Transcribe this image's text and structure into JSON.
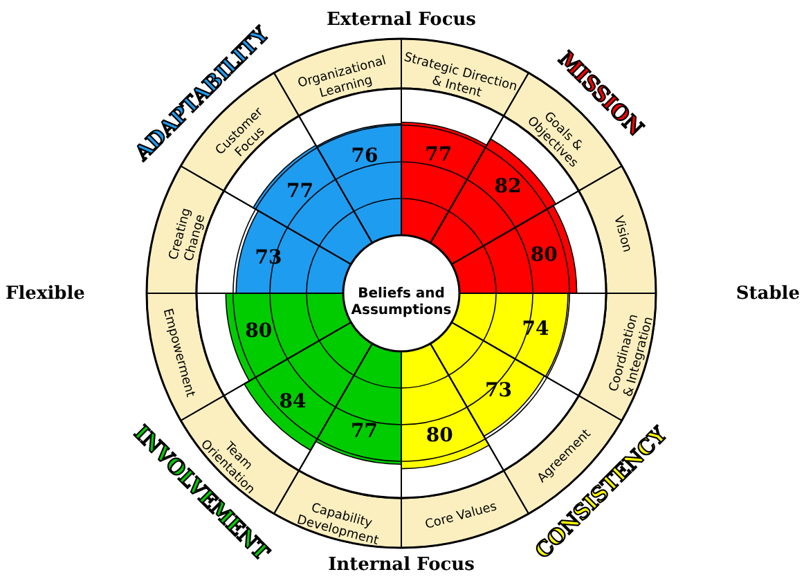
{
  "chart_data": {
    "type": "other",
    "categories": [
      "Strategic Direction\n& Intent",
      "Goals &\nObjectives",
      "Vision",
      "Coordination\n& Integration",
      "Agreement",
      "Core Values",
      "Capability\nDevelopment",
      "Team\nOrientation",
      "Empowerment",
      "Creating\nChange",
      "Customer\nFocus",
      "Organizational\nLearning"
    ],
    "series": [
      {
        "name": "MISSION",
        "color": "#ff0000",
        "values": [
          77,
          82,
          80,
          null,
          null,
          null,
          null,
          null,
          null,
          null,
          null,
          null
        ]
      },
      {
        "name": "CONSISTENCY",
        "color": "#ffff00",
        "values": [
          null,
          null,
          null,
          74,
          73,
          80,
          null,
          null,
          null,
          null,
          null,
          null
        ]
      },
      {
        "name": "INVOLVEMENT",
        "color": "#00cc00",
        "values": [
          null,
          null,
          null,
          null,
          null,
          null,
          77,
          84,
          80,
          null,
          null,
          null
        ]
      },
      {
        "name": "ADAPTABILITY",
        "color": "#1e9cf0",
        "values": [
          null,
          null,
          null,
          null,
          null,
          null,
          null,
          null,
          null,
          73,
          77,
          76
        ]
      }
    ],
    "data_labels": true,
    "annotations": [
      "External Focus",
      "Stable",
      "Internal Focus",
      "Flexible",
      "Beliefs and\nAssumptions"
    ]
  }
}
